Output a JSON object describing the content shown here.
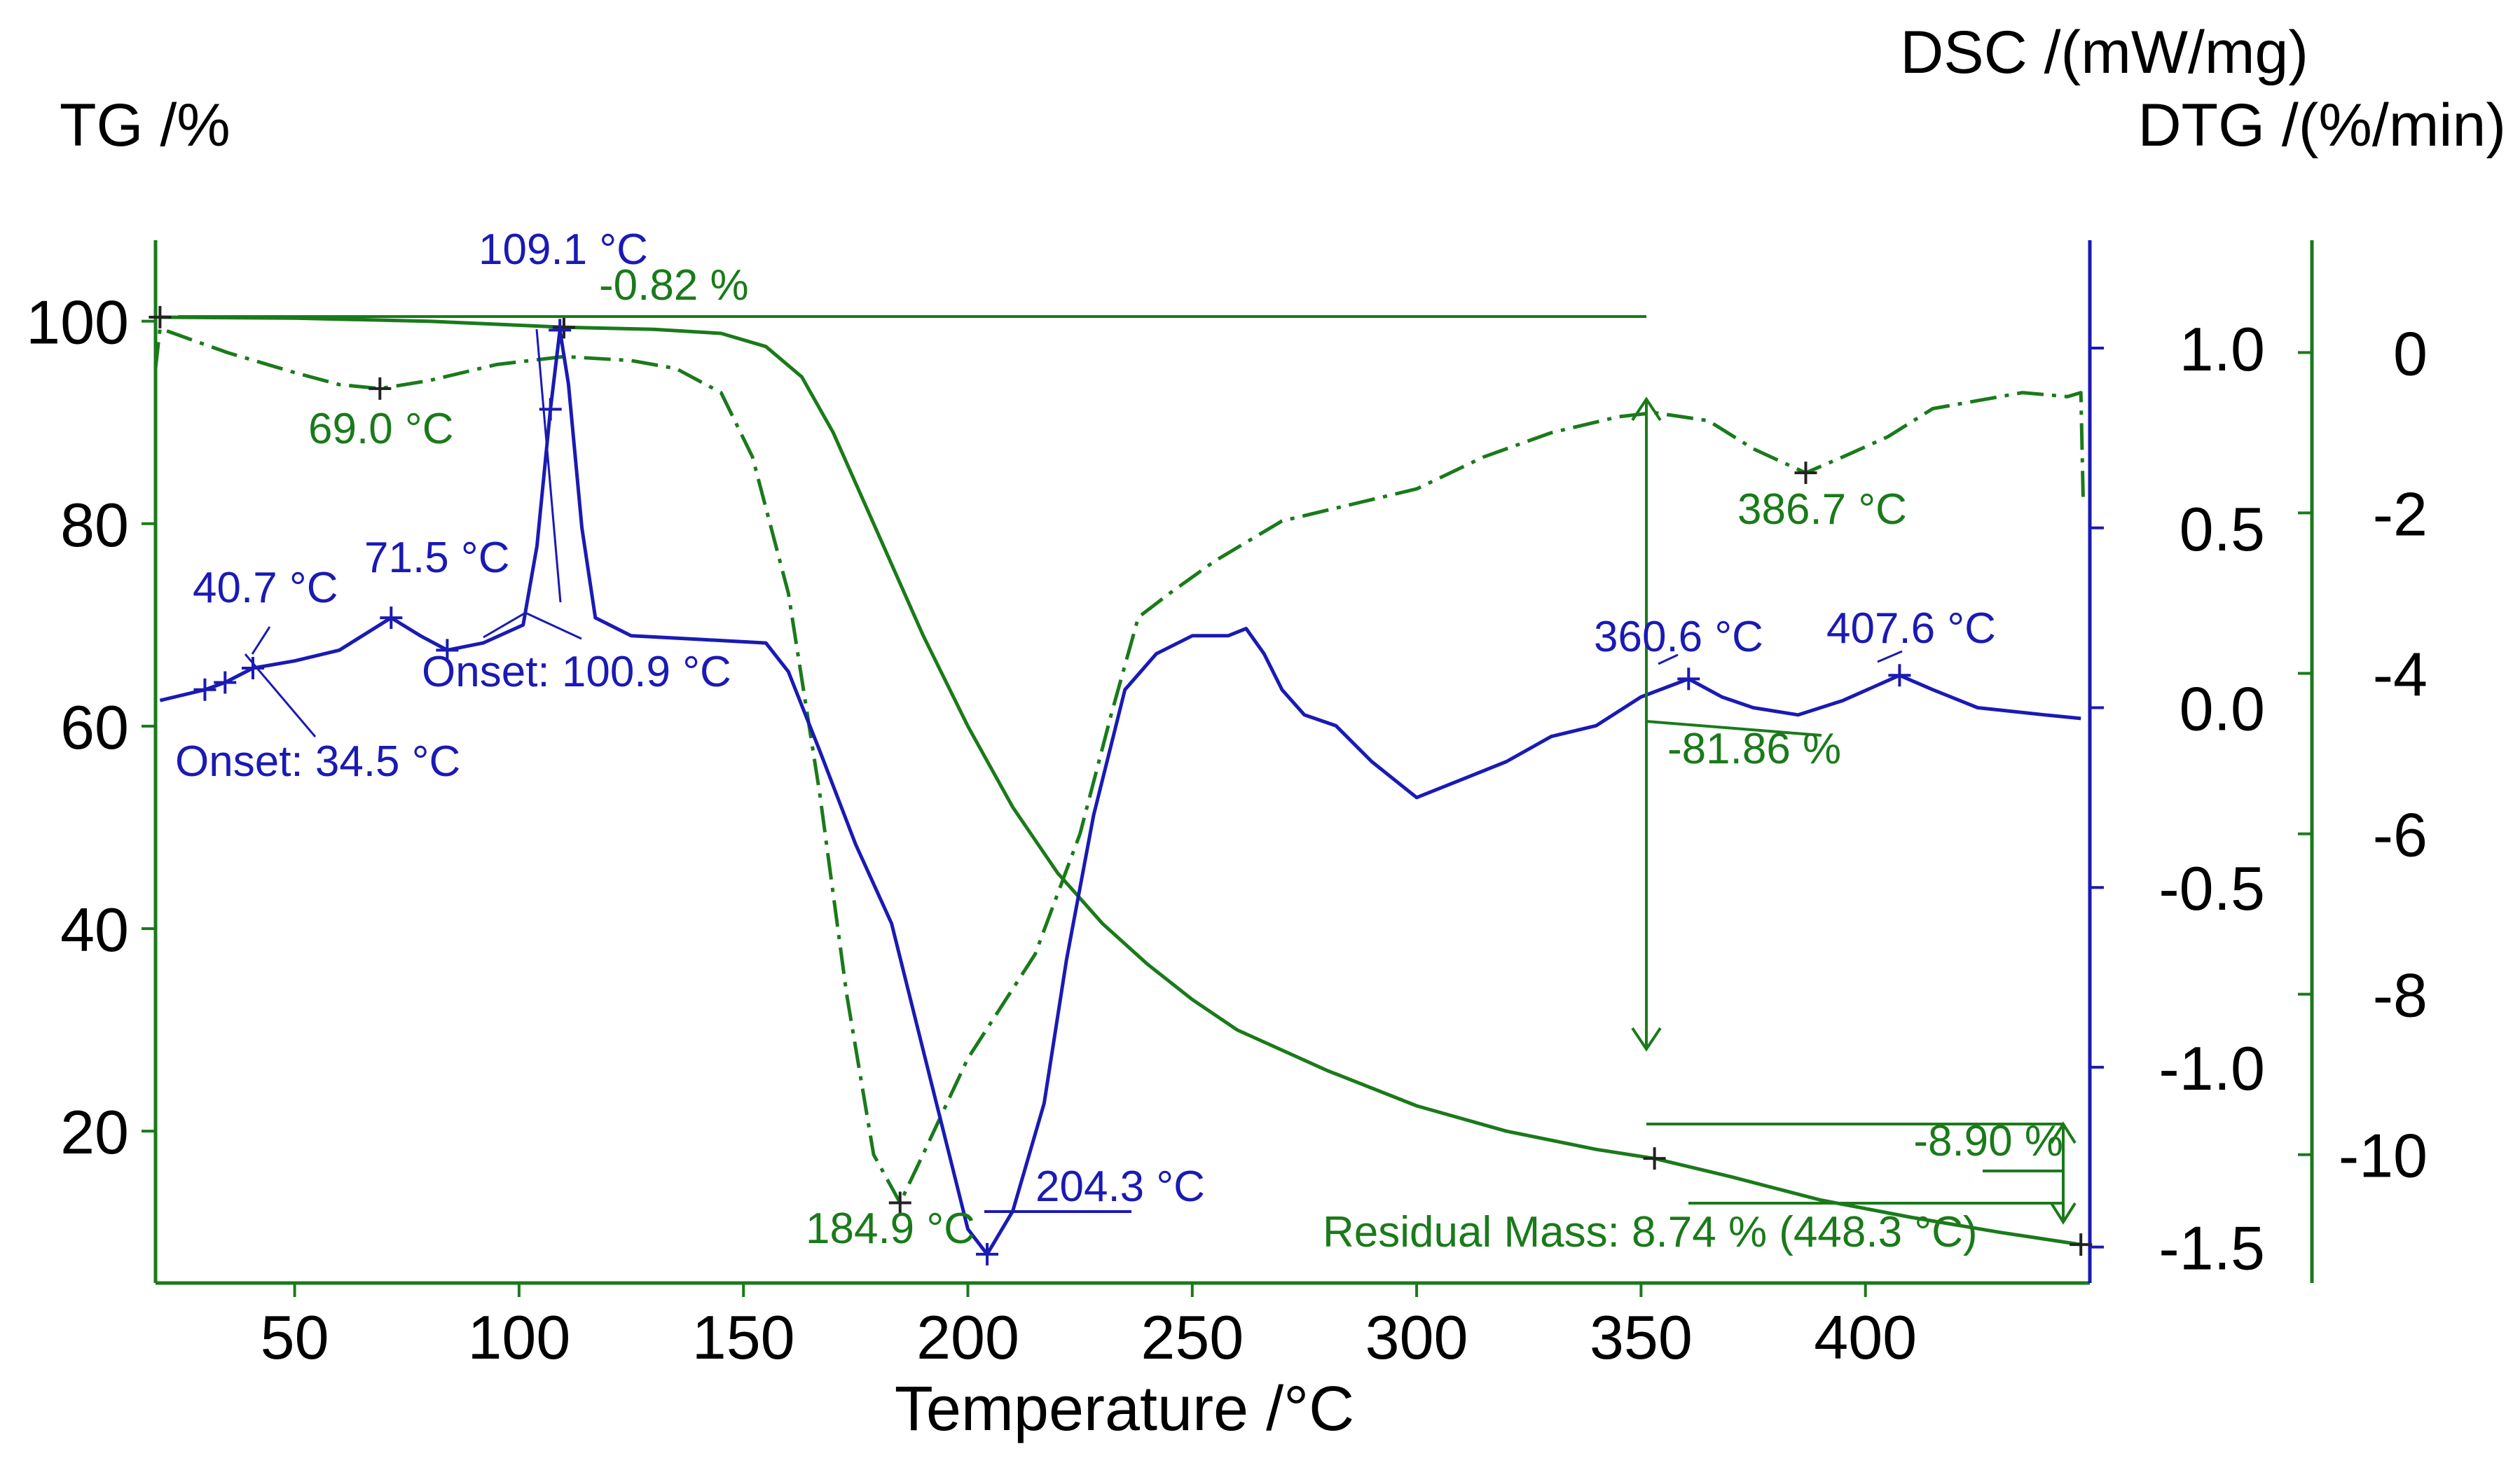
{
  "colors": {
    "tg": "#1a7a1a",
    "dtg": "#1a7a1a",
    "dsc": "#1a1ab4",
    "axis_left": "#1a7a1a",
    "axis_right_dsc": "#1a1ab4",
    "axis_right_dtg": "#1a7a1a"
  },
  "chart_data": {
    "type": "line",
    "xlabel": "Temperature /°C",
    "ylabel_left": "TG /%",
    "ylabel_right_1": "DSC /(mW/mg)",
    "ylabel_right_2": "DTG /(%/min)",
    "xlim": [
      19,
      450
    ],
    "ylim_tg": [
      5,
      108
    ],
    "ylim_dsc": [
      -1.6,
      1.3
    ],
    "ylim_dtg": [
      -11.6,
      1.4
    ],
    "x_ticks": [
      "50",
      "100",
      "150",
      "200",
      "250",
      "300",
      "350",
      "400"
    ],
    "tg_ticks": [
      "20",
      "40",
      "60",
      "80",
      "100"
    ],
    "dsc_ticks": [
      "-1.5",
      "-1.0",
      "-0.5",
      "0.0",
      "0.5",
      "1.0"
    ],
    "dtg_ticks": [
      "-10",
      "-8",
      "-6",
      "-4",
      "-2",
      "0"
    ],
    "series": [
      {
        "name": "TG",
        "axis": "tg",
        "points": [
          [
            20,
            100.4
          ],
          [
            50,
            100.3
          ],
          [
            80,
            100
          ],
          [
            110,
            99.4
          ],
          [
            130,
            99.2
          ],
          [
            145,
            98.8
          ],
          [
            155,
            97.5
          ],
          [
            163,
            94.5
          ],
          [
            170,
            89
          ],
          [
            180,
            79
          ],
          [
            190,
            69
          ],
          [
            200,
            60
          ],
          [
            210,
            52
          ],
          [
            220,
            45.5
          ],
          [
            230,
            40.5
          ],
          [
            240,
            36.5
          ],
          [
            250,
            33
          ],
          [
            260,
            30
          ],
          [
            280,
            26
          ],
          [
            300,
            22.5
          ],
          [
            320,
            20
          ],
          [
            340,
            18.2
          ],
          [
            353,
            17.3
          ],
          [
            370,
            15.5
          ],
          [
            390,
            13.2
          ],
          [
            410,
            11.5
          ],
          [
            430,
            10
          ],
          [
            448,
            8.8
          ]
        ]
      },
      {
        "name": "DTG",
        "axis": "dtg",
        "points": [
          [
            19,
            -0.2
          ],
          [
            20,
            0.3
          ],
          [
            35,
            0
          ],
          [
            50,
            -0.25
          ],
          [
            60,
            -0.4
          ],
          [
            69,
            -0.45
          ],
          [
            80,
            -0.35
          ],
          [
            95,
            -0.15
          ],
          [
            110,
            -0.05
          ],
          [
            125,
            -0.1
          ],
          [
            135,
            -0.2
          ],
          [
            145,
            -0.5
          ],
          [
            152,
            -1.3
          ],
          [
            160,
            -3
          ],
          [
            167,
            -5.5
          ],
          [
            173,
            -8
          ],
          [
            179,
            -10
          ],
          [
            184.9,
            -10.6
          ],
          [
            190,
            -10
          ],
          [
            200,
            -8.8
          ],
          [
            215,
            -7.5
          ],
          [
            225,
            -6
          ],
          [
            232,
            -4.5
          ],
          [
            238,
            -3.3
          ],
          [
            245,
            -3
          ],
          [
            255,
            -2.6
          ],
          [
            270,
            -2.1
          ],
          [
            285,
            -1.9
          ],
          [
            300,
            -1.7
          ],
          [
            315,
            -1.3
          ],
          [
            330,
            -1.0
          ],
          [
            345,
            -0.8
          ],
          [
            353,
            -0.75
          ],
          [
            365,
            -0.85
          ],
          [
            375,
            -1.2
          ],
          [
            386.7,
            -1.5
          ],
          [
            395,
            -1.3
          ],
          [
            405,
            -1.05
          ],
          [
            415,
            -0.7
          ],
          [
            425,
            -0.6
          ],
          [
            435,
            -0.5
          ],
          [
            445,
            -0.55
          ],
          [
            448,
            -0.5
          ],
          [
            448.5,
            -1.8
          ]
        ]
      },
      {
        "name": "DSC",
        "axis": "dsc",
        "points": [
          [
            20,
            0.02
          ],
          [
            30,
            0.05
          ],
          [
            34.5,
            0.07
          ],
          [
            40.7,
            0.11
          ],
          [
            50,
            0.13
          ],
          [
            60,
            0.16
          ],
          [
            71.5,
            0.25
          ],
          [
            78,
            0.2
          ],
          [
            84,
            0.16
          ],
          [
            92,
            0.18
          ],
          [
            100.9,
            0.23
          ],
          [
            104,
            0.45
          ],
          [
            107,
            0.83
          ],
          [
            109.1,
            1.05
          ],
          [
            111,
            0.9
          ],
          [
            114,
            0.5
          ],
          [
            117,
            0.25
          ],
          [
            125,
            0.2
          ],
          [
            140,
            0.19
          ],
          [
            155,
            0.18
          ],
          [
            160,
            0.1
          ],
          [
            167,
            -0.12
          ],
          [
            175,
            -0.38
          ],
          [
            183,
            -0.6
          ],
          [
            190,
            -0.95
          ],
          [
            196,
            -1.25
          ],
          [
            200,
            -1.45
          ],
          [
            204.3,
            -1.52
          ],
          [
            210,
            -1.4
          ],
          [
            217,
            -1.1
          ],
          [
            222,
            -0.7
          ],
          [
            228,
            -0.3
          ],
          [
            235,
            0.05
          ],
          [
            242,
            0.15
          ],
          [
            250,
            0.2
          ],
          [
            258,
            0.2
          ],
          [
            262,
            0.22
          ],
          [
            266,
            0.15
          ],
          [
            270,
            0.05
          ],
          [
            275,
            -0.02
          ],
          [
            282,
            -0.05
          ],
          [
            290,
            -0.15
          ],
          [
            300,
            -0.25
          ],
          [
            310,
            -0.2
          ],
          [
            320,
            -0.15
          ],
          [
            330,
            -0.08
          ],
          [
            340,
            -0.05
          ],
          [
            350,
            0.03
          ],
          [
            360.6,
            0.08
          ],
          [
            368,
            0.03
          ],
          [
            375,
            0
          ],
          [
            385,
            -0.02
          ],
          [
            395,
            0.02
          ],
          [
            407.6,
            0.09
          ],
          [
            415,
            0.05
          ],
          [
            425,
            0
          ],
          [
            440,
            -0.02
          ],
          [
            448,
            -0.03
          ]
        ]
      }
    ],
    "annotations": [
      {
        "text": "109.1 °C",
        "series": "DSC"
      },
      {
        "text": "-0.82 %",
        "series": "TG"
      },
      {
        "text": "69.0 °C",
        "series": "DTG"
      },
      {
        "text": "40.7 °C",
        "series": "DSC"
      },
      {
        "text": "71.5 °C",
        "series": "DSC"
      },
      {
        "text": "Onset: 100.9 °C",
        "series": "DSC"
      },
      {
        "text": "Onset: 34.5 °C",
        "series": "DSC"
      },
      {
        "text": "386.7 °C",
        "series": "DTG"
      },
      {
        "text": "360.6 °C",
        "series": "DSC"
      },
      {
        "text": "407.6 °C",
        "series": "DSC"
      },
      {
        "text": "-81.86 %",
        "series": "TG"
      },
      {
        "text": "-8.90 %",
        "series": "TG"
      },
      {
        "text": "184.9 °C",
        "series": "DTG"
      },
      {
        "text": "204.3 °C",
        "series": "DSC"
      },
      {
        "text": "Residual Mass: 8.74 % (448.3 °C)",
        "series": "TG"
      }
    ]
  }
}
